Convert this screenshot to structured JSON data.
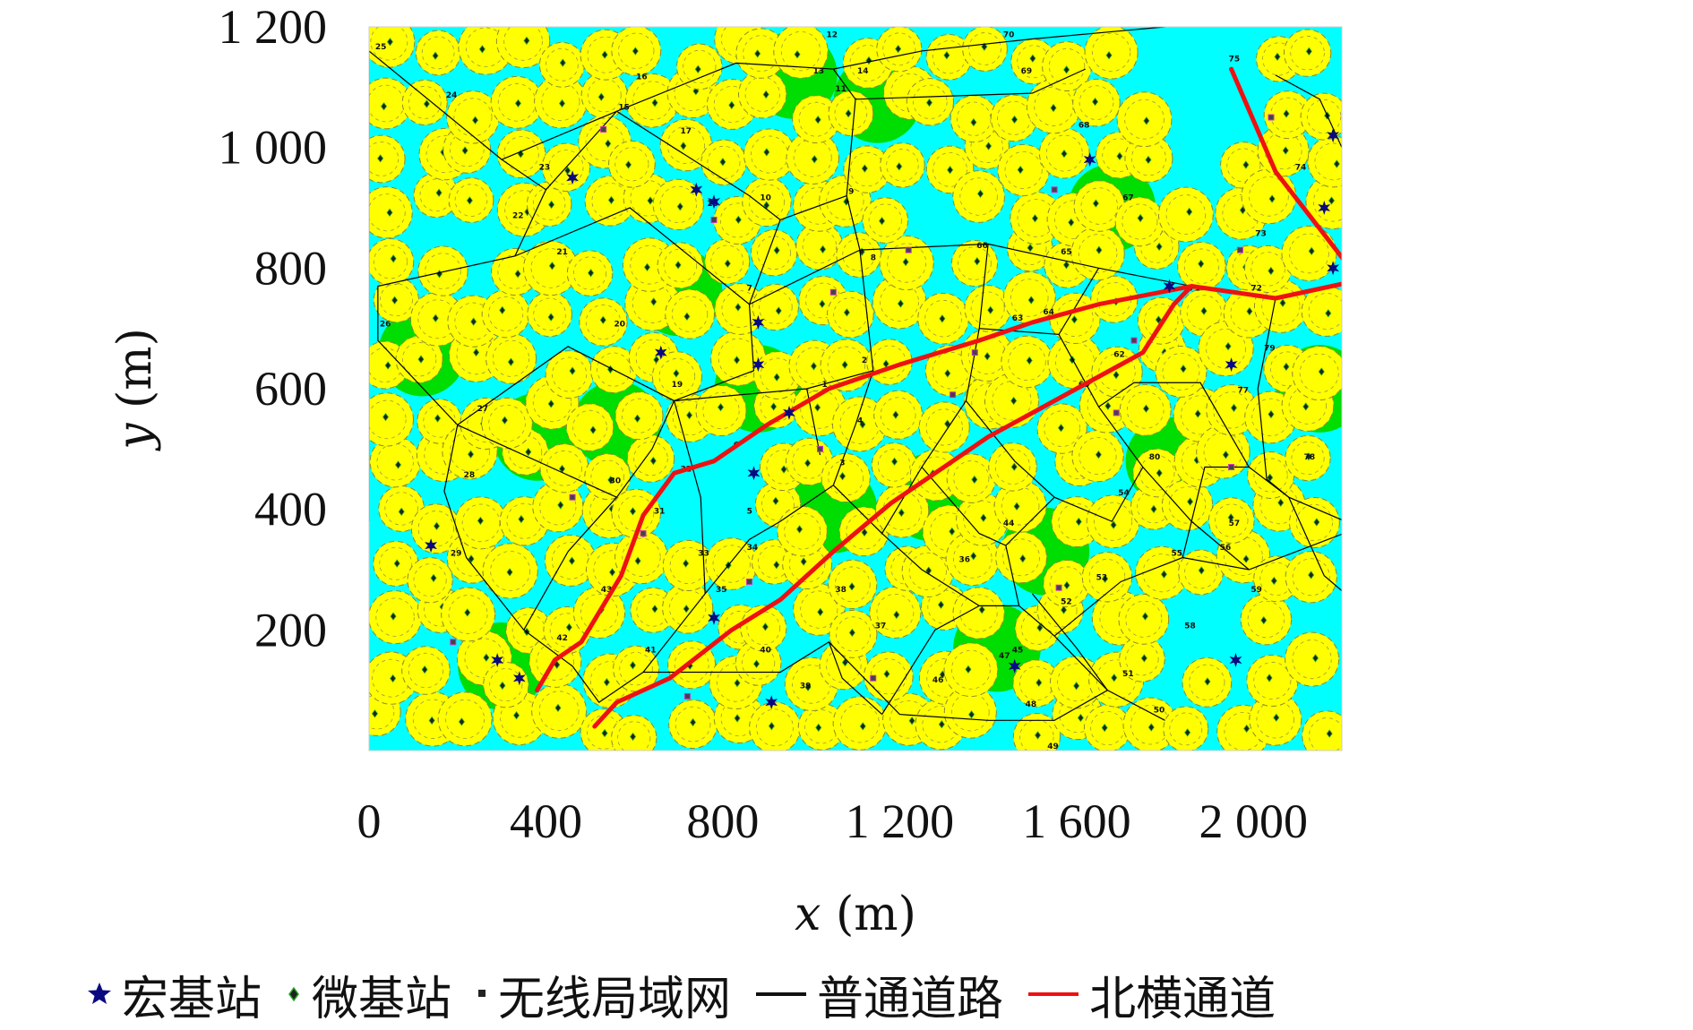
{
  "chart_data": {
    "type": "scatter",
    "xlabel_var": "x",
    "xlabel_unit": "(m)",
    "ylabel_var": "y",
    "ylabel_unit": "(m)",
    "xlim": [
      0,
      2200
    ],
    "ylim": [
      0,
      1200
    ],
    "x_ticks": [
      {
        "value": 0,
        "label": "0"
      },
      {
        "value": 400,
        "label": "400"
      },
      {
        "value": 800,
        "label": "800"
      },
      {
        "value": 1200,
        "label": "1 200"
      },
      {
        "value": 1600,
        "label": "1 600"
      },
      {
        "value": 2000,
        "label": "2 000"
      }
    ],
    "y_ticks": [
      {
        "value": 200,
        "label": "200"
      },
      {
        "value": 400,
        "label": "400"
      },
      {
        "value": 600,
        "label": "600"
      },
      {
        "value": 800,
        "label": "800"
      },
      {
        "value": 1000,
        "label": "1 000"
      },
      {
        "value": 1200,
        "label": "1 200"
      }
    ],
    "map_colors": {
      "background": "#00ffff",
      "coverage": "#ffff00",
      "gap": "#00dd00",
      "macro": "#0a0a80",
      "road": "#000000",
      "corridor": "#ee1111"
    },
    "macro_stations": [
      [
        460,
        950
      ],
      [
        740,
        930
      ],
      [
        780,
        910
      ],
      [
        1630,
        980
      ],
      [
        2180,
        1020
      ],
      [
        2160,
        900
      ],
      [
        2240,
        900
      ],
      [
        2180,
        800
      ],
      [
        1810,
        770
      ],
      [
        660,
        660
      ],
      [
        880,
        710
      ],
      [
        880,
        640
      ],
      [
        950,
        560
      ],
      [
        870,
        460
      ],
      [
        1950,
        640
      ],
      [
        2250,
        660
      ],
      [
        140,
        340
      ],
      [
        290,
        150
      ],
      [
        340,
        120
      ],
      [
        780,
        220
      ],
      [
        910,
        80
      ],
      [
        1460,
        140
      ],
      [
        1960,
        150
      ]
    ],
    "wlan_points": [
      [
        190,
        180
      ],
      [
        720,
        90
      ],
      [
        1560,
        270
      ],
      [
        1220,
        830
      ],
      [
        1550,
        930
      ],
      [
        780,
        880
      ],
      [
        460,
        420
      ],
      [
        1950,
        470
      ],
      [
        1020,
        500
      ],
      [
        620,
        360
      ],
      [
        1320,
        590
      ],
      [
        1690,
        560
      ],
      [
        860,
        280
      ],
      [
        1140,
        120
      ],
      [
        1730,
        680
      ],
      [
        1370,
        660
      ],
      [
        1050,
        760
      ],
      [
        530,
        1030
      ],
      [
        1970,
        830
      ],
      [
        2040,
        1050
      ]
    ],
    "roads": [
      [
        [
          0,
          1160
        ],
        [
          300,
          980
        ],
        [
          560,
          1060
        ],
        [
          830,
          1140
        ],
        [
          1050,
          1130
        ],
        [
          1250,
          1160
        ],
        [
          1500,
          1180
        ],
        [
          1800,
          1200
        ]
      ],
      [
        [
          1050,
          1130
        ],
        [
          1100,
          1080
        ],
        [
          1500,
          1090
        ],
        [
          1620,
          1130
        ]
      ],
      [
        [
          0,
          1160
        ],
        [
          0,
          380
        ]
      ],
      [
        [
          300,
          980
        ],
        [
          400,
          930
        ],
        [
          330,
          820
        ],
        [
          20,
          770
        ],
        [
          20,
          680
        ],
        [
          200,
          540
        ],
        [
          170,
          430
        ],
        [
          220,
          320
        ],
        [
          350,
          200
        ],
        [
          460,
          140
        ],
        [
          520,
          80
        ],
        [
          620,
          130
        ],
        [
          930,
          130
        ],
        [
          1040,
          180
        ],
        [
          1200,
          60
        ],
        [
          1400,
          50
        ],
        [
          1550,
          50
        ],
        [
          1670,
          100
        ],
        [
          1600,
          170
        ],
        [
          1500,
          260
        ]
      ],
      [
        [
          400,
          930
        ],
        [
          560,
          1060
        ],
        [
          860,
          920
        ],
        [
          930,
          880
        ],
        [
          1080,
          920
        ],
        [
          1100,
          1080
        ]
      ],
      [
        [
          930,
          880
        ],
        [
          860,
          740
        ],
        [
          870,
          630
        ],
        [
          690,
          580
        ],
        [
          640,
          500
        ],
        [
          560,
          420
        ],
        [
          450,
          330
        ],
        [
          350,
          200
        ]
      ],
      [
        [
          1080,
          920
        ],
        [
          1110,
          830
        ],
        [
          1140,
          630
        ],
        [
          1100,
          540
        ],
        [
          1050,
          440
        ],
        [
          930,
          380
        ],
        [
          860,
          350
        ],
        [
          760,
          260
        ],
        [
          620,
          130
        ]
      ],
      [
        [
          330,
          820
        ],
        [
          590,
          900
        ],
        [
          860,
          740
        ],
        [
          1110,
          830
        ]
      ],
      [
        [
          200,
          540
        ],
        [
          450,
          670
        ],
        [
          690,
          580
        ],
        [
          990,
          600
        ],
        [
          1140,
          630
        ]
      ],
      [
        [
          200,
          540
        ],
        [
          560,
          420
        ]
      ],
      [
        [
          1110,
          830
        ],
        [
          1400,
          840
        ],
        [
          1650,
          800
        ],
        [
          1860,
          770
        ],
        [
          2050,
          750
        ],
        [
          2240,
          780
        ],
        [
          2250,
          840
        ],
        [
          2200,
          1000
        ],
        [
          2150,
          1080
        ],
        [
          2050,
          1120
        ]
      ],
      [
        [
          1400,
          840
        ],
        [
          1380,
          700
        ],
        [
          1560,
          690
        ],
        [
          1650,
          800
        ]
      ],
      [
        [
          1380,
          700
        ],
        [
          1350,
          580
        ],
        [
          1250,
          470
        ],
        [
          1160,
          360
        ],
        [
          1050,
          440
        ]
      ],
      [
        [
          1560,
          690
        ],
        [
          1650,
          570
        ],
        [
          1750,
          470
        ],
        [
          1860,
          380
        ],
        [
          1990,
          300
        ],
        [
          2240,
          370
        ]
      ],
      [
        [
          1650,
          570
        ],
        [
          1730,
          610
        ],
        [
          1880,
          610
        ],
        [
          1990,
          470
        ],
        [
          2080,
          420
        ],
        [
          2240,
          370
        ]
      ],
      [
        [
          1350,
          580
        ],
        [
          1460,
          480
        ],
        [
          1550,
          420
        ],
        [
          1680,
          380
        ],
        [
          1750,
          470
        ]
      ],
      [
        [
          1250,
          470
        ],
        [
          1380,
          360
        ],
        [
          1440,
          340
        ],
        [
          1550,
          420
        ]
      ],
      [
        [
          1440,
          340
        ],
        [
          1470,
          240
        ],
        [
          1550,
          190
        ],
        [
          1670,
          100
        ],
        [
          1800,
          50
        ]
      ],
      [
        [
          1160,
          360
        ],
        [
          1250,
          300
        ],
        [
          1380,
          240
        ],
        [
          1470,
          240
        ]
      ],
      [
        [
          1040,
          180
        ],
        [
          1070,
          120
        ],
        [
          1160,
          60
        ]
      ],
      [
        [
          1160,
          60
        ],
        [
          1280,
          200
        ],
        [
          1380,
          240
        ]
      ],
      [
        [
          1550,
          190
        ],
        [
          1700,
          280
        ],
        [
          1840,
          320
        ],
        [
          1990,
          300
        ]
      ],
      [
        [
          1840,
          320
        ],
        [
          1890,
          470
        ],
        [
          1990,
          470
        ]
      ],
      [
        [
          2050,
          750
        ],
        [
          2010,
          600
        ],
        [
          2030,
          450
        ],
        [
          2080,
          420
        ],
        [
          2160,
          290
        ],
        [
          2240,
          240
        ]
      ],
      [
        [
          2230,
          1200
        ],
        [
          2230,
          160
        ]
      ],
      [
        [
          760,
          260
        ],
        [
          750,
          420
        ],
        [
          690,
          580
        ]
      ],
      [
        [
          1020,
          490
        ],
        [
          990,
          600
        ]
      ]
    ],
    "corridor": [
      [
        [
          1950,
          1130
        ],
        [
          2050,
          960
        ],
        [
          2240,
          780
        ],
        [
          2050,
          750
        ],
        [
          1860,
          770
        ],
        [
          1820,
          740
        ],
        [
          1750,
          660
        ],
        [
          1600,
          600
        ],
        [
          1400,
          520
        ],
        [
          1180,
          410
        ],
        [
          1050,
          330
        ],
        [
          930,
          250
        ],
        [
          820,
          200
        ],
        [
          680,
          120
        ],
        [
          560,
          80
        ],
        [
          510,
          40
        ]
      ],
      [
        [
          1860,
          770
        ],
        [
          1650,
          740
        ],
        [
          1500,
          710
        ],
        [
          1380,
          680
        ],
        [
          1200,
          640
        ],
        [
          1040,
          600
        ],
        [
          900,
          540
        ],
        [
          780,
          480
        ],
        [
          690,
          460
        ],
        [
          620,
          390
        ],
        [
          570,
          290
        ],
        [
          480,
          180
        ],
        [
          420,
          150
        ],
        [
          380,
          100
        ]
      ]
    ],
    "node_labels": [
      {
        "t": "25",
        "x": 10,
        "y": 1160
      },
      {
        "t": "24",
        "x": 170,
        "y": 1080
      },
      {
        "t": "23",
        "x": 380,
        "y": 960
      },
      {
        "t": "22",
        "x": 320,
        "y": 880
      },
      {
        "t": "21",
        "x": 420,
        "y": 820
      },
      {
        "t": "20",
        "x": 550,
        "y": 700
      },
      {
        "t": "26",
        "x": 20,
        "y": 700
      },
      {
        "t": "27",
        "x": 240,
        "y": 560
      },
      {
        "t": "28",
        "x": 210,
        "y": 450
      },
      {
        "t": "29",
        "x": 180,
        "y": 320
      },
      {
        "t": "30",
        "x": 540,
        "y": 440
      },
      {
        "t": "31",
        "x": 640,
        "y": 390
      },
      {
        "t": "32",
        "x": 700,
        "y": 460
      },
      {
        "t": "33",
        "x": 740,
        "y": 320
      },
      {
        "t": "34",
        "x": 850,
        "y": 330
      },
      {
        "t": "35",
        "x": 780,
        "y": 260
      },
      {
        "t": "36",
        "x": 1330,
        "y": 310
      },
      {
        "t": "37",
        "x": 1140,
        "y": 200
      },
      {
        "t": "38",
        "x": 1050,
        "y": 260
      },
      {
        "t": "39",
        "x": 970,
        "y": 100
      },
      {
        "t": "40",
        "x": 880,
        "y": 160
      },
      {
        "t": "41",
        "x": 620,
        "y": 160
      },
      {
        "t": "42",
        "x": 420,
        "y": 180
      },
      {
        "t": "43",
        "x": 520,
        "y": 260
      },
      {
        "t": "44",
        "x": 1430,
        "y": 370
      },
      {
        "t": "45",
        "x": 1450,
        "y": 160
      },
      {
        "t": "46",
        "x": 1270,
        "y": 110
      },
      {
        "t": "47",
        "x": 1420,
        "y": 150
      },
      {
        "t": "48",
        "x": 1480,
        "y": 70
      },
      {
        "t": "49",
        "x": 1530,
        "y": 0
      },
      {
        "t": "50",
        "x": 1770,
        "y": 60
      },
      {
        "t": "51",
        "x": 1700,
        "y": 120
      },
      {
        "t": "52",
        "x": 1560,
        "y": 240
      },
      {
        "t": "53",
        "x": 1640,
        "y": 280
      },
      {
        "t": "54",
        "x": 1690,
        "y": 420
      },
      {
        "t": "55",
        "x": 1810,
        "y": 320
      },
      {
        "t": "56",
        "x": 1920,
        "y": 330
      },
      {
        "t": "57",
        "x": 1940,
        "y": 370
      },
      {
        "t": "58",
        "x": 1840,
        "y": 200
      },
      {
        "t": "59",
        "x": 1990,
        "y": 260
      },
      {
        "t": "60",
        "x": 1600,
        "y": 600
      },
      {
        "t": "61",
        "x": 2210,
        "y": 330
      },
      {
        "t": "62",
        "x": 1680,
        "y": 650
      },
      {
        "t": "63",
        "x": 1450,
        "y": 710
      },
      {
        "t": "64",
        "x": 1520,
        "y": 720
      },
      {
        "t": "65",
        "x": 1560,
        "y": 820
      },
      {
        "t": "66",
        "x": 1370,
        "y": 830
      },
      {
        "t": "67",
        "x": 1700,
        "y": 910
      },
      {
        "t": "68",
        "x": 1600,
        "y": 1030
      },
      {
        "t": "69",
        "x": 1470,
        "y": 1120
      },
      {
        "t": "70",
        "x": 1430,
        "y": 1180
      },
      {
        "t": "71",
        "x": 1850,
        "y": 760
      },
      {
        "t": "72",
        "x": 1990,
        "y": 760
      },
      {
        "t": "73",
        "x": 2000,
        "y": 850
      },
      {
        "t": "74",
        "x": 2090,
        "y": 960
      },
      {
        "t": "75",
        "x": 1940,
        "y": 1140
      },
      {
        "t": "76",
        "x": 2240,
        "y": 790
      },
      {
        "t": "77",
        "x": 1960,
        "y": 590
      },
      {
        "t": "78",
        "x": 2110,
        "y": 480
      },
      {
        "t": "79",
        "x": 2020,
        "y": 660
      },
      {
        "t": "80",
        "x": 1760,
        "y": 480
      },
      {
        "t": "1",
        "x": 1020,
        "y": 600
      },
      {
        "t": "2",
        "x": 1110,
        "y": 640
      },
      {
        "t": "3",
        "x": 1060,
        "y": 470
      },
      {
        "t": "4",
        "x": 1100,
        "y": 540
      },
      {
        "t": "5",
        "x": 850,
        "y": 390
      },
      {
        "t": "6",
        "x": 820,
        "y": 500
      },
      {
        "t": "7",
        "x": 850,
        "y": 760
      },
      {
        "t": "8",
        "x": 1130,
        "y": 810
      },
      {
        "t": "9",
        "x": 1080,
        "y": 920
      },
      {
        "t": "10",
        "x": 880,
        "y": 910
      },
      {
        "t": "11",
        "x": 1050,
        "y": 1090
      },
      {
        "t": "12",
        "x": 1030,
        "y": 1180
      },
      {
        "t": "13",
        "x": 1000,
        "y": 1120
      },
      {
        "t": "14",
        "x": 1100,
        "y": 1120
      },
      {
        "t": "15",
        "x": 560,
        "y": 1060
      },
      {
        "t": "16",
        "x": 600,
        "y": 1110
      },
      {
        "t": "17",
        "x": 700,
        "y": 1020
      },
      {
        "t": "18",
        "x": 760,
        "y": 900
      },
      {
        "t": "19",
        "x": 680,
        "y": 600
      }
    ]
  },
  "legend": {
    "macro": "宏基站",
    "micro": "微基站",
    "wlan": "无线局域网",
    "road": "普通道路",
    "corridor": "北横通道"
  }
}
